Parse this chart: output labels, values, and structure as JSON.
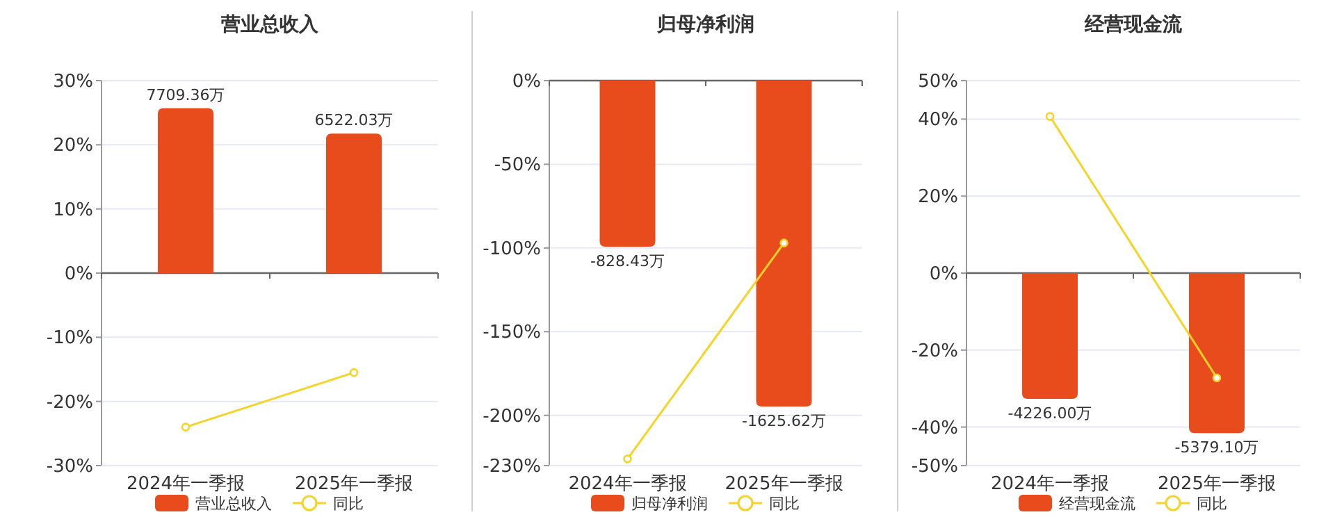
{
  "chart_data": [
    {
      "type": "bar",
      "title": "营业总收入",
      "categories": [
        "2024年一季报",
        "2025年一季报"
      ],
      "ylim": [
        -30,
        30
      ],
      "yticks": [
        {
          "value": 30,
          "label": "30%"
        },
        {
          "value": 20,
          "label": "20%"
        },
        {
          "value": 10,
          "label": "10%"
        },
        {
          "value": 0,
          "label": "0%"
        },
        {
          "value": -10,
          "label": "-10%"
        },
        {
          "value": -20,
          "label": "-20%"
        },
        {
          "value": -30,
          "label": "-30%"
        }
      ],
      "y2lim": [
        -9000,
        9000
      ],
      "grid": "y",
      "legend": "bottom",
      "marker": "circle",
      "series": [
        {
          "name": "营业总收入",
          "axis": "y2",
          "color": "#e84c1c",
          "values": [
            7709.36,
            6522.03
          ],
          "value_labels": [
            "7709.36万",
            "6522.03万"
          ]
        },
        {
          "name": "同比",
          "type": "line",
          "color": "#f5d327",
          "values": [
            -24.0,
            -15.5
          ]
        }
      ]
    },
    {
      "type": "bar",
      "title": "归母净利润",
      "categories": [
        "2024年一季报",
        "2025年一季报"
      ],
      "ylim": [
        -230,
        0
      ],
      "yticks": [
        {
          "value": 0,
          "label": "0%"
        },
        {
          "value": -50,
          "label": "-50%"
        },
        {
          "value": -100,
          "label": "-100%"
        },
        {
          "value": -150,
          "label": "-150%"
        },
        {
          "value": -200,
          "label": "-200%"
        },
        {
          "value": -230,
          "label": "-230%"
        }
      ],
      "y2lim": [
        -1920,
        0
      ],
      "grid": "y",
      "legend": "bottom",
      "marker": "circle",
      "series": [
        {
          "name": "归母净利润",
          "axis": "y2",
          "color": "#e84c1c",
          "values": [
            -828.43,
            -1625.62
          ],
          "value_labels": [
            "-828.43万",
            "-1625.62万"
          ]
        },
        {
          "name": "同比",
          "type": "line",
          "color": "#f5d327",
          "values": [
            -226,
            -97
          ]
        }
      ]
    },
    {
      "type": "bar",
      "title": "经营现金流",
      "categories": [
        "2024年一季报",
        "2025年一季报"
      ],
      "ylim": [
        -50,
        50
      ],
      "yticks": [
        {
          "value": 50,
          "label": "50%"
        },
        {
          "value": 40,
          "label": "40%"
        },
        {
          "value": 20,
          "label": "20%"
        },
        {
          "value": 0,
          "label": "0%"
        },
        {
          "value": -20,
          "label": "-20%"
        },
        {
          "value": -40,
          "label": "-40%"
        },
        {
          "value": -50,
          "label": "-50%"
        }
      ],
      "y2lim": [
        -6470,
        6470
      ],
      "grid": "y",
      "legend": "bottom",
      "marker": "circle",
      "series": [
        {
          "name": "经营现金流",
          "axis": "y2",
          "color": "#e84c1c",
          "values": [
            -4226.0,
            -5379.1
          ],
          "value_labels": [
            "-4226.00万",
            "-5379.10万"
          ]
        },
        {
          "name": "同比",
          "type": "line",
          "color": "#f5d327",
          "values": [
            40.7,
            -27.2
          ]
        }
      ]
    }
  ]
}
